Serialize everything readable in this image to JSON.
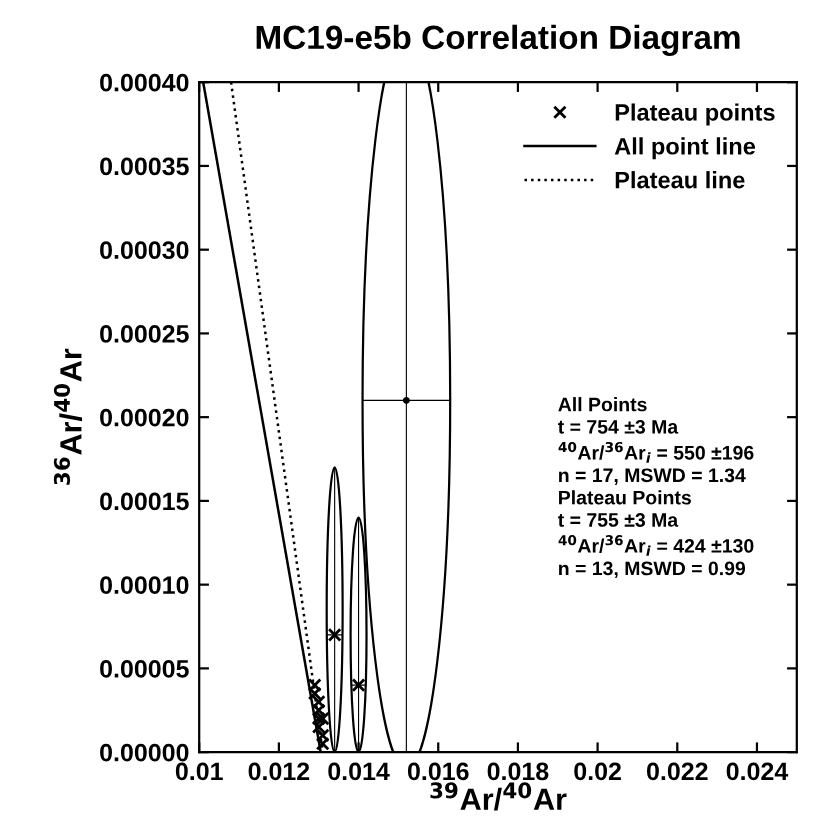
{
  "chart_data": {
    "type": "scatter",
    "title": "MC19-e5b Correlation Diagram",
    "xlabel": "$^{39}$Ar/$^{40}$Ar",
    "ylabel": "$^{36}$Ar/$^{40}$Ar",
    "xlim": [
      0.01,
      0.025
    ],
    "xticks": [
      0.01,
      0.012,
      0.014,
      0.016,
      0.018,
      0.02,
      0.022,
      0.024
    ],
    "ylim": [
      0,
      0.0004
    ],
    "yticks": [
      {
        "value": 0,
        "label": "0.00000"
      },
      {
        "value": 5e-05,
        "label": "0.00005"
      },
      {
        "value": 0.0001,
        "label": "0.00010"
      },
      {
        "value": 0.00015,
        "label": "0.00015"
      },
      {
        "value": 0.0002,
        "label": "0.00020"
      },
      {
        "value": 0.00025,
        "label": "0.00025"
      },
      {
        "value": 0.0003,
        "label": "0.00030"
      },
      {
        "value": 0.00035,
        "label": "0.00035"
      },
      {
        "value": 0.0004,
        "label": "0.00040"
      }
    ],
    "grid": false,
    "legend": "top right",
    "series": [
      {
        "name": "Plateau points",
        "marker": "cross",
        "color": "#000000",
        "x": [
          0.0134,
          0.014,
          0.0129,
          0.0129,
          0.013,
          0.013,
          0.013,
          0.013,
          0.0131,
          0.0131,
          0.0131
        ],
        "values": [
          7e-05,
          4e-05,
          4e-05,
          3.5e-05,
          3e-05,
          2.5e-05,
          2e-05,
          1.5e-05,
          1e-05,
          5e-06,
          2e-05
        ],
        "xerrors": [
          0.0002,
          0.0002,
          null,
          null,
          null,
          null,
          null,
          null,
          null,
          null,
          null
        ],
        "errors": [
          [
            0,
            0.00017
          ],
          [
            0,
            0.00014
          ],
          null,
          null,
          null,
          null,
          null,
          null,
          null,
          null,
          null
        ]
      },
      {
        "marker": "circle",
        "color": "#000000",
        "x": [
          0.0152
        ],
        "values": [
          0.00021
        ],
        "xerrors": [
          0.0011
        ],
        "errors": [
          0.00022
        ]
      },
      {
        "name": "All point line",
        "type": "line",
        "line_style": "solid",
        "color": "#000000",
        "x": [
          0.0101,
          0.01305
        ],
        "values": [
          0.0004,
          0
        ]
      },
      {
        "name": "Plateau line",
        "type": "line",
        "line_style": "dotted",
        "color": "#000000",
        "x": [
          0.0108,
          0.0131
        ],
        "values": [
          0.0004,
          0
        ]
      }
    ],
    "annotations": [
      "All Points\nt = 754 ±3 Ma\n$^{40}$Ar/$^{36}$Ar$_{i}$ = 550 ±196\nn = 17, MSWD = 1.34\nPlateau Points\nt = 755 ±3 Ma\n$^{40}$Ar/$^{36}$Ar$_{i}$ = 424 ±130\nn = 13, MSWD = 0.99"
    ]
  }
}
